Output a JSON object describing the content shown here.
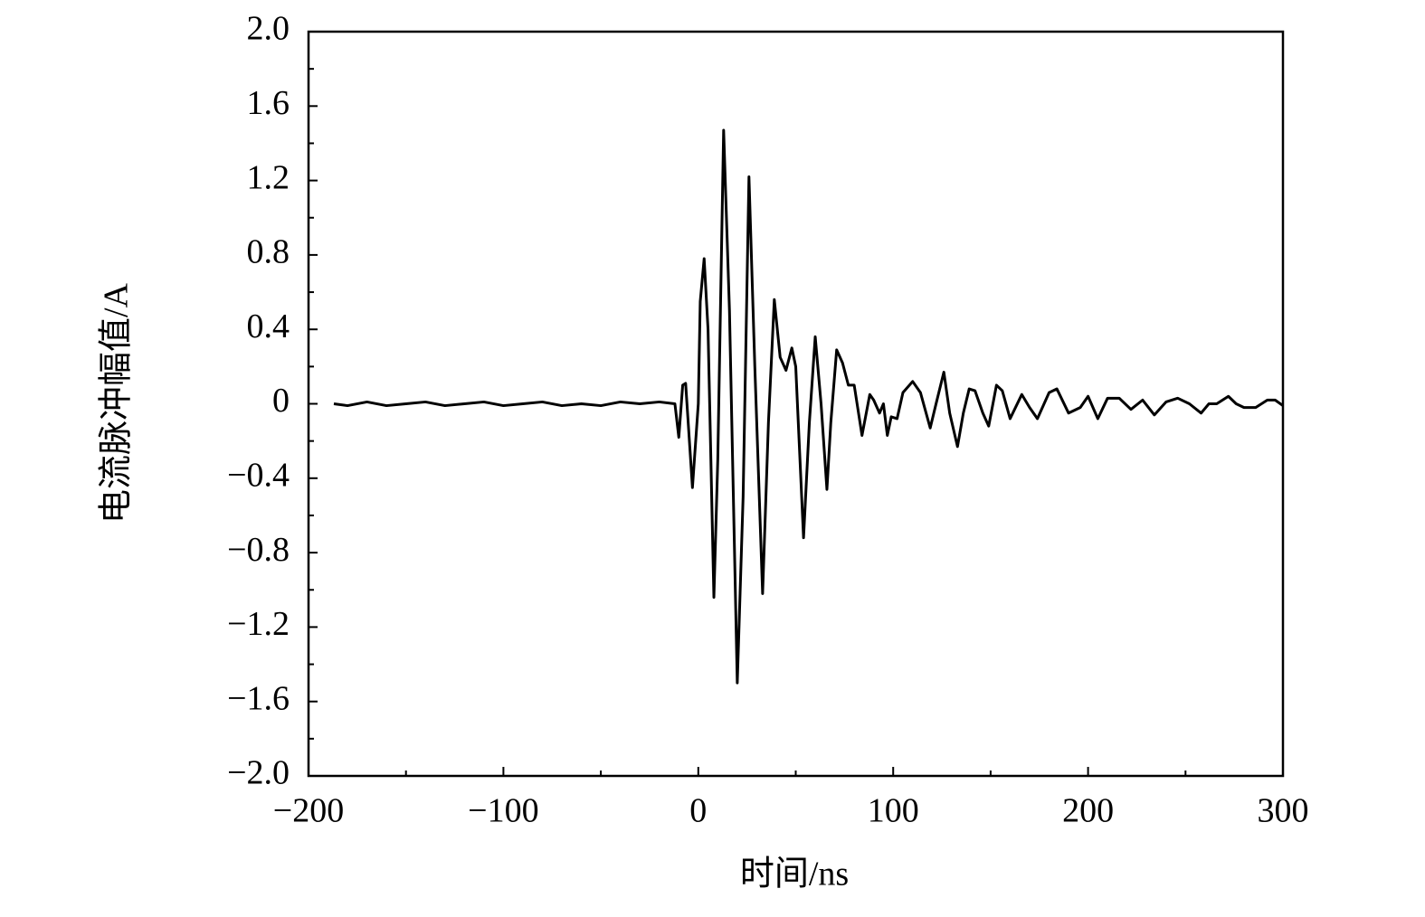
{
  "chart_data": {
    "type": "line",
    "x_label": "时间/ns",
    "y_label": "电流脉冲幅值/A",
    "color": "#000000",
    "x": [
      -187,
      -180,
      -170,
      -160,
      -150,
      -140,
      -130,
      -120,
      -110,
      -100,
      -90,
      -80,
      -70,
      -60,
      -50,
      -40,
      -30,
      -20,
      -12,
      -10,
      -8,
      -6.5,
      -3,
      0,
      1,
      3,
      5,
      8,
      10,
      13,
      16,
      20,
      23,
      26,
      29,
      33,
      36,
      39,
      42,
      45,
      48,
      50,
      54,
      57,
      60,
      63,
      66,
      68,
      71,
      74,
      77,
      80,
      84,
      88,
      90,
      93,
      95,
      97,
      99,
      102,
      105,
      110,
      114,
      119,
      122,
      126,
      129,
      133,
      136,
      139,
      142,
      146,
      149,
      153,
      156,
      160,
      166,
      170,
      174,
      180,
      184,
      190,
      196,
      200,
      205,
      210,
      216,
      222,
      228,
      234,
      240,
      246,
      252,
      258,
      262,
      266,
      272,
      276,
      280,
      286,
      292,
      296,
      300
    ],
    "values": [
      0,
      -0.01,
      0.01,
      -0.01,
      0.0,
      0.01,
      -0.01,
      0.0,
      0.01,
      -0.01,
      0.0,
      0.01,
      -0.01,
      0.0,
      -0.01,
      0.01,
      0.0,
      0.01,
      0.0,
      -0.18,
      0.1,
      0.11,
      -0.45,
      0.0,
      0.55,
      0.78,
      0.4,
      -1.04,
      -0.3,
      1.47,
      0.5,
      -1.5,
      -0.5,
      1.22,
      0.2,
      -1.02,
      -0.1,
      0.56,
      0.25,
      0.18,
      0.3,
      0.2,
      -0.72,
      -0.1,
      0.36,
      0.0,
      -0.46,
      -0.1,
      0.29,
      0.22,
      0.1,
      0.1,
      -0.17,
      0.05,
      0.02,
      -0.05,
      0.0,
      -0.17,
      -0.07,
      -0.08,
      0.06,
      0.12,
      0.06,
      -0.13,
      0.0,
      0.17,
      -0.05,
      -0.23,
      -0.05,
      0.08,
      0.07,
      -0.05,
      -0.12,
      0.1,
      0.07,
      -0.08,
      0.05,
      -0.02,
      -0.08,
      0.06,
      0.08,
      -0.05,
      -0.02,
      0.04,
      -0.08,
      0.03,
      0.03,
      -0.03,
      0.02,
      -0.06,
      0.01,
      0.03,
      0.0,
      -0.05,
      0.0,
      0.0,
      0.04,
      0.0,
      -0.02,
      -0.02,
      0.02,
      0.02,
      -0.01
    ],
    "xlim": [
      -200,
      300
    ],
    "xticks": [
      {
        "value": -200,
        "label": "−200"
      },
      {
        "value": -100,
        "label": "−100"
      },
      0,
      100,
      200,
      300
    ],
    "ylim": [
      -2,
      2
    ],
    "yticks": [
      {
        "value": -2,
        "label": "−2.0"
      },
      {
        "value": -1.6,
        "label": "−1.6"
      },
      {
        "value": -1.2,
        "label": "−1.2"
      },
      {
        "value": -0.8,
        "label": "−0.8"
      },
      {
        "value": -0.4,
        "label": "−0.4"
      },
      0,
      {
        "value": 0.4,
        "label": "0.4"
      },
      {
        "value": 0.8,
        "label": "0.8"
      },
      {
        "value": 1.2,
        "label": "1.2"
      },
      {
        "value": 1.6,
        "label": "1.6"
      },
      {
        "value": 2,
        "label": "2.0"
      }
    ],
    "grid": false
  }
}
